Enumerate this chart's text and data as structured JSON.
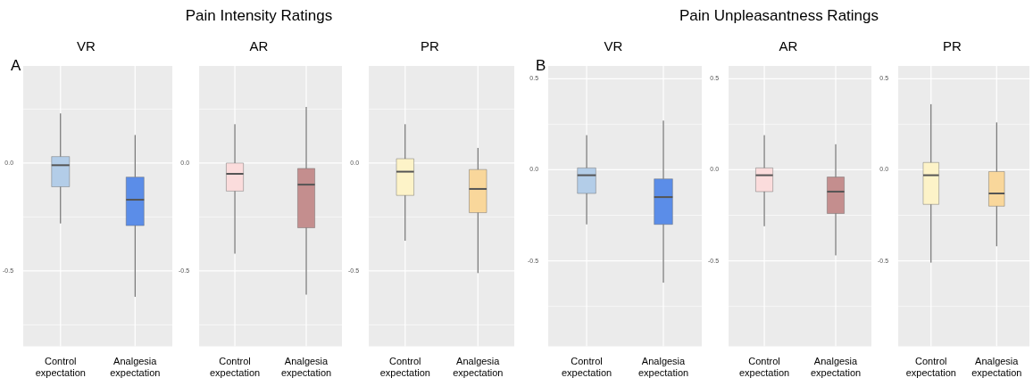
{
  "chart_data": [
    {
      "type": "box",
      "title": "VR",
      "annotations": [
        "Pain Intensity Ratings",
        "A"
      ],
      "categories": [
        "Control expectation",
        "Analgesia expectation"
      ],
      "colors": [
        "#b3cde8",
        "#5b8de8"
      ],
      "boxes": [
        {
          "low": -0.28,
          "q1": -0.11,
          "median": -0.01,
          "q3": 0.03,
          "high": 0.23
        },
        {
          "low": -0.62,
          "q1": -0.29,
          "median": -0.17,
          "q3": -0.065,
          "high": 0.13
        }
      ],
      "ylim": [
        -0.85,
        0.45
      ],
      "yticks": [
        {
          "value": -0.75,
          "label": null
        },
        {
          "value": -0.5,
          "label": "-0.5"
        },
        {
          "value": -0.25,
          "label": null
        },
        {
          "value": 0,
          "label": "0.0"
        },
        {
          "value": 0.25,
          "label": null
        }
      ],
      "grid": true
    },
    {
      "type": "box",
      "title": "AR",
      "categories": [
        "Control expectation",
        "Analgesia expectation"
      ],
      "colors": [
        "#fbdcdc",
        "#c48e8e"
      ],
      "boxes": [
        {
          "low": -0.42,
          "q1": -0.13,
          "median": -0.05,
          "q3": 0.0,
          "high": 0.18
        },
        {
          "low": -0.61,
          "q1": -0.3,
          "median": -0.1,
          "q3": -0.025,
          "high": 0.26
        }
      ],
      "ylim": [
        -0.85,
        0.45
      ],
      "yticks": [
        {
          "value": -0.75,
          "label": null
        },
        {
          "value": -0.5,
          "label": "-0.5"
        },
        {
          "value": -0.25,
          "label": null
        },
        {
          "value": 0,
          "label": "0.0"
        },
        {
          "value": 0.25,
          "label": null
        }
      ],
      "grid": true
    },
    {
      "type": "box",
      "title": "PR",
      "categories": [
        "Control expectation",
        "Analgesia expectation"
      ],
      "colors": [
        "#fdf3c8",
        "#f9d79b"
      ],
      "boxes": [
        {
          "low": -0.36,
          "q1": -0.15,
          "median": -0.04,
          "q3": 0.02,
          "high": 0.18
        },
        {
          "low": -0.51,
          "q1": -0.23,
          "median": -0.12,
          "q3": -0.03,
          "high": 0.07
        }
      ],
      "ylim": [
        -0.85,
        0.45
      ],
      "yticks": [
        {
          "value": -0.75,
          "label": null
        },
        {
          "value": -0.5,
          "label": "-0.5"
        },
        {
          "value": -0.25,
          "label": null
        },
        {
          "value": 0,
          "label": "0.0"
        },
        {
          "value": 0.25,
          "label": null
        }
      ],
      "grid": true
    },
    {
      "type": "box",
      "title": "VR",
      "annotations": [
        "Pain Unpleasantness Ratings",
        "B"
      ],
      "categories": [
        "Control expectation",
        "Analgesia expectation"
      ],
      "colors": [
        "#b3cde8",
        "#5b8de8"
      ],
      "boxes": [
        {
          "low": -0.3,
          "q1": -0.13,
          "median": -0.03,
          "q3": 0.01,
          "high": 0.19
        },
        {
          "low": -0.62,
          "q1": -0.3,
          "median": -0.15,
          "q3": -0.05,
          "high": 0.27
        }
      ],
      "ylim": [
        -0.97,
        0.57
      ],
      "yticks": [
        {
          "value": -0.75,
          "label": null
        },
        {
          "value": -0.5,
          "label": "-0.5"
        },
        {
          "value": -0.25,
          "label": null
        },
        {
          "value": 0,
          "label": "0.0"
        },
        {
          "value": 0.25,
          "label": null
        },
        {
          "value": 0.5,
          "label": "0.5"
        }
      ],
      "grid": true
    },
    {
      "type": "box",
      "title": "AR",
      "categories": [
        "Control expectation",
        "Analgesia expectation"
      ],
      "colors": [
        "#fbdcdc",
        "#c48e8e"
      ],
      "boxes": [
        {
          "low": -0.31,
          "q1": -0.12,
          "median": -0.03,
          "q3": 0.01,
          "high": 0.19
        },
        {
          "low": -0.47,
          "q1": -0.24,
          "median": -0.12,
          "q3": -0.04,
          "high": 0.14
        }
      ],
      "ylim": [
        -0.97,
        0.57
      ],
      "yticks": [
        {
          "value": -0.75,
          "label": null
        },
        {
          "value": -0.5,
          "label": "-0.5"
        },
        {
          "value": -0.25,
          "label": null
        },
        {
          "value": 0,
          "label": "0.0"
        },
        {
          "value": 0.25,
          "label": null
        },
        {
          "value": 0.5,
          "label": "0.5"
        }
      ],
      "grid": true
    },
    {
      "type": "box",
      "title": "PR",
      "categories": [
        "Control expectation",
        "Analgesia expectation"
      ],
      "colors": [
        "#fdf3c8",
        "#f9d79b"
      ],
      "boxes": [
        {
          "low": -0.51,
          "q1": -0.19,
          "median": -0.03,
          "q3": 0.04,
          "high": 0.36
        },
        {
          "low": -0.42,
          "q1": -0.2,
          "median": -0.13,
          "q3": -0.01,
          "high": 0.26
        }
      ],
      "ylim": [
        -0.97,
        0.57
      ],
      "yticks": [
        {
          "value": -0.75,
          "label": null
        },
        {
          "value": -0.5,
          "label": "-0.5"
        },
        {
          "value": -0.25,
          "label": null
        },
        {
          "value": 0,
          "label": "0.0"
        },
        {
          "value": 0.25,
          "label": null
        },
        {
          "value": 0.5,
          "label": "0.5"
        }
      ],
      "grid": true
    }
  ]
}
